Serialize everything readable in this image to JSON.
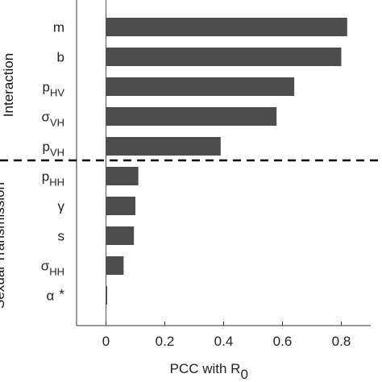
{
  "chart_data": {
    "type": "bar",
    "orientation": "horizontal",
    "categories": [
      {
        "base": "m",
        "sub": ""
      },
      {
        "base": "b",
        "sub": ""
      },
      {
        "base": "p",
        "sub": "HV"
      },
      {
        "base": "σ",
        "sub": "VH"
      },
      {
        "base": "p",
        "sub": "VH"
      },
      {
        "base": "p",
        "sub": "HH"
      },
      {
        "base": "γ",
        "sub": ""
      },
      {
        "base": "s",
        "sub": ""
      },
      {
        "base": "σ",
        "sub": "HH"
      },
      {
        "base": "α",
        "sub": "",
        "marker": "*"
      }
    ],
    "values": [
      0.82,
      0.8,
      0.64,
      0.58,
      0.39,
      0.11,
      0.1,
      0.095,
      0.06,
      0.003
    ],
    "xlabel": {
      "text": "PCC with R",
      "sub": "0"
    },
    "xlim": [
      -0.1,
      0.9
    ],
    "xticks": [
      0,
      0.2,
      0.4,
      0.6,
      0.8
    ],
    "xtick_labels": [
      "0",
      "0.2",
      "0.4",
      "0.6",
      "0.8"
    ],
    "groups": [
      {
        "label": "Interaction",
        "categories": [
          "m",
          "b",
          "p HV",
          "σ VH",
          "p VH"
        ]
      },
      {
        "label": "Sexual Transmission",
        "categories": [
          "p HH",
          "γ",
          "s",
          "σ HH",
          "α"
        ]
      }
    ],
    "divider": "dashed line between p VH and p HH",
    "bar_color": "#4d4d4d",
    "grid": false
  }
}
